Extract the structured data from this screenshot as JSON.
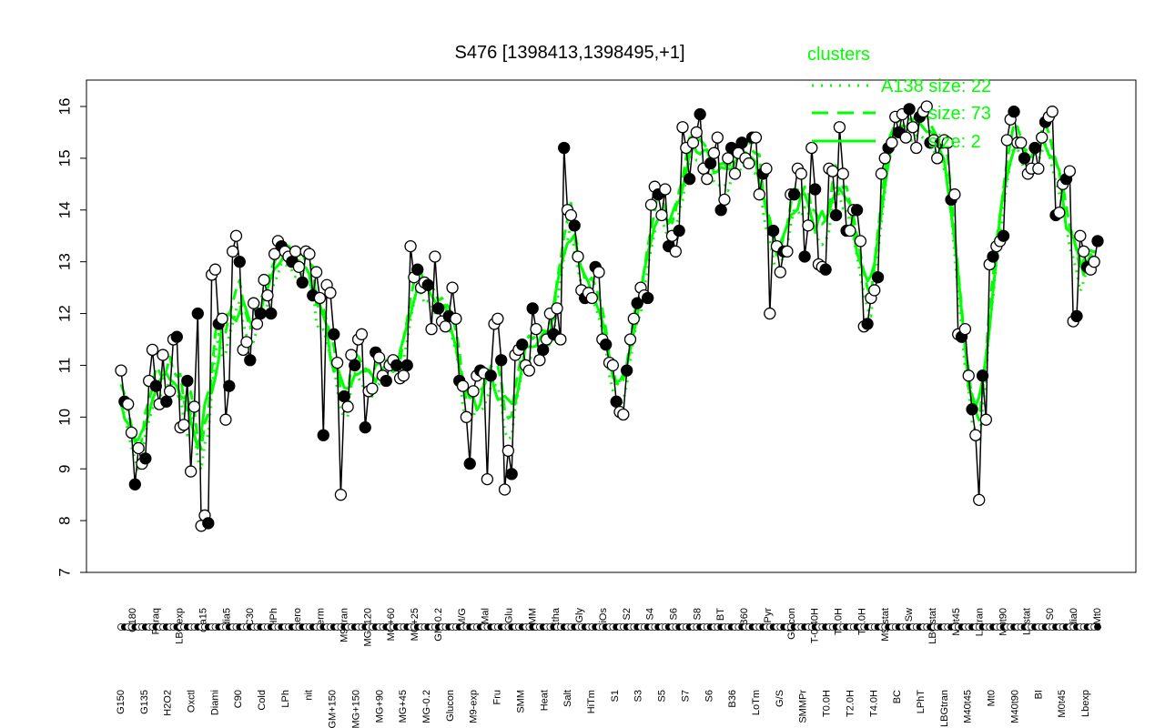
{
  "chart_data": {
    "type": "line",
    "title": "S476 [1398413,1398495,+1]",
    "xlabel": "",
    "ylabel": "",
    "ylim": [
      7,
      16
    ],
    "yticks": [
      7,
      8,
      9,
      10,
      11,
      12,
      13,
      14,
      15,
      16
    ],
    "grid": false,
    "legend": {
      "title": "clusters",
      "placement": "top-right",
      "entries": [
        {
          "label": "A138 size: 22",
          "style": "dotted"
        },
        {
          "label": "size: 73",
          "style": "dashed"
        },
        {
          "label": "size: 2",
          "style": "solid"
        }
      ]
    },
    "colors": {
      "cluster_lines": "#00ff00",
      "points": "#000000",
      "open_points": "#ffffff"
    },
    "x_tick_labels": [
      "G150",
      "G180",
      "G135",
      "Paraq",
      "H2O2",
      "LBGexp",
      "Oxctl",
      "dia15",
      "Diami",
      "dia5",
      "C90",
      "C30",
      "Cold",
      "HPh",
      "LPh",
      "aero",
      "nit",
      "ferm",
      "GM+150",
      "M9-tran",
      "MG+150",
      "MG+120",
      "MG+90",
      "MG+60",
      "MG+45",
      "MG+25",
      "MG-0.2",
      "GM-0.2",
      "Glucon",
      "M/G",
      "M9-exp",
      "Mal",
      "Fru",
      "Glu",
      "SMM",
      "BMM",
      "Heat",
      "Etha",
      "Salt",
      "Gly",
      "HiTm",
      "HiOs",
      "S1",
      "S2",
      "S3",
      "S4",
      "S5",
      "S6",
      "S7",
      "S8",
      "S6",
      "BT",
      "B36",
      "B60",
      "LoTm",
      "Pyr",
      "G/S",
      "Glucon",
      "SMMPr",
      "T-0.40H",
      "T0.0H",
      "T1.0H",
      "T2.0H",
      "T3.0H",
      "T4.0H",
      "M9-stat",
      "BC",
      "Sw",
      "LPhT",
      "LBGstat",
      "LBGtran",
      "M0t45",
      "M40t45",
      "Lbtran",
      "Mt0",
      "M0t90",
      "M40t90",
      "Lbstat",
      "BI",
      "S0",
      "M0t45",
      "dia0",
      "Lbexp",
      "Mt0"
    ],
    "series": [
      {
        "values": [
          10.9,
          10.3,
          10.25,
          9.7,
          8.7,
          9.4,
          9.1,
          9.2,
          10.7,
          11.3,
          10.6,
          10.25,
          11.2,
          10.3,
          10.5,
          11.5,
          11.55,
          9.8,
          9.85,
          10.7,
          8.95,
          10.2,
          12.0,
          7.9,
          8.1,
          7.95,
          12.75,
          12.85,
          11.8,
          11.9,
          9.95,
          10.6,
          13.2,
          13.5,
          13.0,
          11.3,
          11.45,
          11.1,
          12.2,
          11.8,
          12.0,
          12.65,
          12.35,
          12.0,
          13.15,
          13.4,
          13.3,
          13.2,
          13.1,
          13.0,
          13.2,
          12.9,
          12.6,
          13.2,
          13.15,
          12.35,
          12.8,
          12.3,
          9.65,
          12.55,
          12.4,
          11.6,
          11.05,
          8.5,
          10.4,
          10.2,
          11.2,
          11.0,
          11.5,
          11.6,
          9.8,
          10.5,
          10.55,
          11.25,
          11.15,
          10.8,
          10.7,
          11.0,
          11.1,
          11.0,
          10.75,
          10.8,
          11.0,
          13.3,
          12.7,
          12.85,
          12.5,
          12.6,
          12.55,
          11.7,
          13.1,
          12.1,
          11.85,
          11.75,
          11.95,
          12.5,
          11.9,
          10.7,
          10.6,
          10.0,
          9.1,
          10.5,
          10.8,
          10.9,
          10.85,
          8.8,
          10.8,
          11.8,
          11.9,
          11.1,
          8.6,
          9.35,
          8.9,
          11.2,
          11.3,
          11.4,
          11.0,
          10.9,
          12.1,
          11.7,
          11.1,
          11.3,
          11.5,
          12.0,
          11.6,
          12.1,
          11.5,
          15.2,
          14.0,
          13.9,
          13.7,
          13.1,
          12.45,
          12.3,
          12.4,
          12.3,
          12.9,
          12.8,
          11.5,
          11.4,
          11.05,
          11.0,
          10.3,
          10.1,
          10.05,
          10.9,
          11.5,
          11.9,
          12.2,
          12.5,
          12.35,
          12.3,
          14.1,
          14.45,
          14.3,
          13.9,
          14.4,
          13.3,
          13.5,
          13.2,
          13.6,
          15.6,
          15.2,
          14.6,
          15.3,
          15.5,
          15.85,
          14.8,
          14.6,
          14.9,
          15.1,
          15.4,
          14.0,
          14.2,
          15.0,
          15.2,
          14.7,
          15.1,
          15.3,
          15.0,
          14.9,
          15.4,
          15.4,
          14.3,
          14.7,
          14.8,
          12.0,
          13.6,
          13.3,
          12.8,
          13.2,
          13.2,
          14.3,
          14.3,
          14.8,
          14.7,
          13.1,
          13.7,
          15.2,
          14.4,
          12.95,
          12.9,
          12.85,
          14.8,
          14.75,
          13.9,
          15.6,
          14.7,
          13.6,
          13.6,
          14.0,
          14.0,
          13.4,
          11.75,
          11.8,
          12.3,
          12.45,
          12.7,
          14.7,
          15.0,
          15.2,
          15.3,
          15.8,
          15.5,
          15.85,
          15.4,
          15.95,
          15.6,
          15.2,
          15.8,
          15.9,
          16.0,
          15.3,
          15.35,
          15.0,
          15.3,
          15.35,
          15.3,
          14.2,
          14.3,
          11.6,
          11.55,
          11.7,
          10.8,
          10.15,
          9.65,
          8.4,
          10.8,
          9.95,
          12.95,
          13.1,
          13.3,
          13.4,
          13.5,
          15.35,
          15.75,
          15.9,
          15.3,
          15.3,
          15.0,
          14.7,
          14.8,
          15.2,
          14.8,
          15.4,
          15.7,
          15.8,
          15.9,
          13.9,
          13.95,
          14.5,
          14.6,
          14.75,
          11.85,
          11.95,
          13.5,
          13.2,
          12.9,
          12.85,
          13.0,
          13.4
        ]
      }
    ]
  }
}
